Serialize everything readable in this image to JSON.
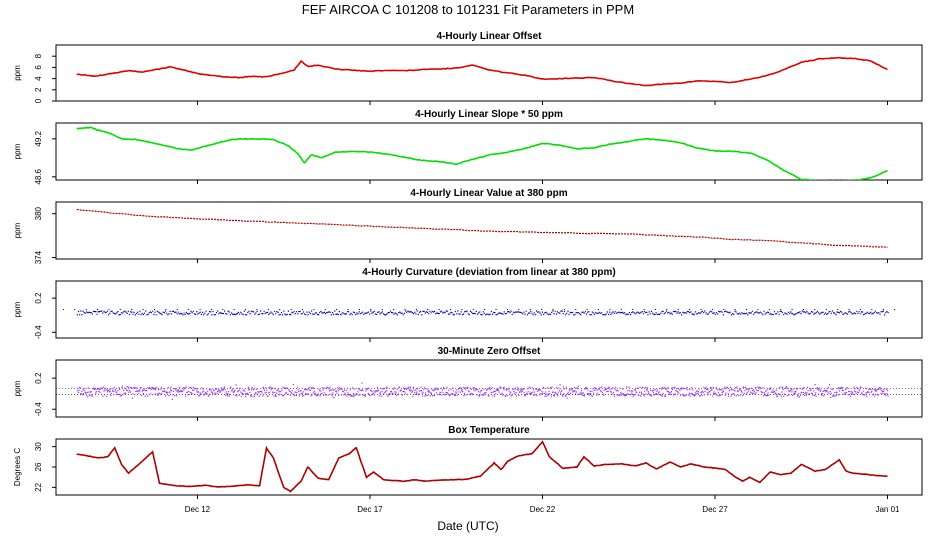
{
  "figure": {
    "title": "FEF   AIRCOA C   101208 to 101231   Fit Parameters in PPM",
    "xlabel": "Date (UTC)",
    "x_ticks": [
      {
        "label": "Dec 12",
        "day": 12
      },
      {
        "label": "Dec 17",
        "day": 17
      },
      {
        "label": "Dec 22",
        "day": 22
      },
      {
        "label": "Dec 27",
        "day": 27
      },
      {
        "label": "Jan 01",
        "day": 32
      }
    ],
    "x_range_days": [
      7.9,
      33.0
    ]
  },
  "chart_data": [
    {
      "type": "line",
      "title": "4-Hourly Linear Offset",
      "ylabel": "ppm",
      "ylim": [
        0,
        10
      ],
      "y_ticks": [
        "0",
        "2",
        "4",
        "6",
        "8"
      ],
      "y_tick_values": [
        0,
        2,
        4,
        6,
        8
      ],
      "color": "#dd0000",
      "series": [
        {
          "x": [
            8.5,
            8.8,
            9.0,
            9.3,
            9.6,
            10.0,
            10.4,
            10.8,
            11.2,
            11.6,
            12.0,
            12.4,
            12.8,
            13.2,
            13.6,
            14.0,
            14.4,
            14.8,
            15.0,
            15.2,
            15.5,
            16.0,
            16.5,
            17.0,
            17.5,
            18.0,
            18.5,
            19.0,
            19.5,
            20.0,
            20.5,
            21.0,
            21.5,
            22.0,
            22.5,
            23.0,
            23.5,
            24.0,
            24.5,
            25.0,
            25.5,
            26.0,
            26.5,
            27.0,
            27.5,
            28.0,
            28.5,
            29.0,
            29.5,
            30.0,
            30.5,
            31.0,
            31.5,
            32.0
          ],
          "y": [
            4.8,
            4.6,
            4.4,
            4.7,
            5.0,
            5.4,
            5.2,
            5.6,
            6.1,
            5.5,
            4.9,
            4.6,
            4.3,
            4.2,
            4.4,
            4.3,
            4.9,
            5.5,
            7.1,
            6.2,
            6.4,
            5.7,
            5.5,
            5.3,
            5.5,
            5.4,
            5.6,
            5.7,
            5.9,
            6.4,
            5.5,
            5.0,
            4.6,
            3.9,
            4.0,
            4.1,
            4.2,
            3.6,
            3.1,
            2.8,
            3.0,
            3.2,
            3.6,
            3.5,
            3.3,
            3.9,
            4.5,
            5.6,
            6.9,
            7.5,
            7.7,
            7.6,
            7.2,
            5.6
          ]
        }
      ]
    },
    {
      "type": "line",
      "title": "4-Hourly Linear Slope * 50 ppm",
      "ylabel": "ppm",
      "ylim": [
        48.55,
        49.45
      ],
      "y_ticks": [
        "48.6",
        "49.2"
      ],
      "y_tick_values": [
        48.6,
        49.2
      ],
      "color": "#00dd00",
      "series": [
        {
          "x": [
            8.5,
            8.7,
            8.9,
            9.1,
            9.4,
            9.8,
            10.2,
            10.6,
            11.0,
            11.4,
            11.8,
            12.2,
            12.6,
            13.0,
            13.4,
            13.8,
            14.2,
            14.6,
            14.9,
            15.1,
            15.3,
            15.6,
            16.0,
            16.4,
            16.8,
            17.2,
            17.6,
            18.0,
            18.5,
            19.0,
            19.5,
            20.0,
            20.5,
            21.0,
            21.5,
            22.0,
            22.5,
            23.0,
            23.5,
            24.0,
            24.5,
            25.0,
            25.5,
            26.0,
            26.5,
            27.0,
            27.5,
            28.0,
            28.5,
            29.0,
            29.5,
            30.0,
            30.5,
            30.8,
            31.2,
            31.6,
            32.0
          ],
          "y": [
            49.36,
            49.37,
            49.38,
            49.34,
            49.3,
            49.2,
            49.19,
            49.15,
            49.1,
            49.05,
            49.02,
            49.08,
            49.14,
            49.19,
            49.2,
            49.2,
            49.19,
            49.1,
            48.97,
            48.82,
            48.95,
            48.9,
            48.99,
            49.0,
            49.0,
            48.98,
            48.95,
            48.91,
            48.86,
            48.84,
            48.8,
            48.88,
            48.95,
            48.99,
            49.05,
            49.13,
            49.1,
            49.04,
            49.06,
            49.12,
            49.16,
            49.2,
            49.18,
            49.14,
            49.05,
            49.01,
            49.0,
            48.98,
            48.87,
            48.7,
            48.56,
            48.54,
            48.54,
            48.54,
            48.55,
            48.6,
            48.7
          ]
        }
      ]
    },
    {
      "type": "line",
      "title": "4-Hourly Linear Value at 380 ppm",
      "ylabel": "ppm",
      "ylim": [
        373.8,
        381.6
      ],
      "y_ticks": [
        "374",
        "380"
      ],
      "y_tick_values": [
        374,
        380
      ],
      "color": "#aa0000",
      "series": [
        {
          "x": [
            8.5,
            9.5,
            10.5,
            11.5,
            12.5,
            13.5,
            14.5,
            15.5,
            16.5,
            17.5,
            18.5,
            19.5,
            20.5,
            21.5,
            22.5,
            23.5,
            24.5,
            25.5,
            26.5,
            27.5,
            28.5,
            29.5,
            30.5,
            31.5,
            32.0
          ],
          "y": [
            380.6,
            380.1,
            379.7,
            379.4,
            379.2,
            379.0,
            378.8,
            378.6,
            378.4,
            378.2,
            378.0,
            377.8,
            377.6,
            377.5,
            377.4,
            377.3,
            377.2,
            377.0,
            376.8,
            376.5,
            376.3,
            376.0,
            375.7,
            375.5,
            375.4
          ]
        }
      ]
    },
    {
      "type": "scatter",
      "title": "4-Hourly Curvature (deviation from linear at 380 ppm)",
      "ylabel": "ppm",
      "ylim": [
        -0.5,
        0.5
      ],
      "y_ticks": [
        "-0.4",
        "0.2"
      ],
      "y_tick_values": [
        -0.4,
        0.2
      ],
      "color": "#0000cc",
      "series": [
        {
          "x": [
            8.5,
            32.0
          ],
          "y": [
            -0.05,
            -0.05
          ]
        }
      ]
    },
    {
      "type": "scatter",
      "title": "30-Minute Zero Offset",
      "ylabel": "ppm",
      "ylim": [
        -0.55,
        0.55
      ],
      "y_ticks": [
        "-0.4",
        "0.2"
      ],
      "y_tick_values": [
        -0.4,
        0.2
      ],
      "color": "#9933ff",
      "series": [
        {
          "x": [
            8.5,
            32.0
          ],
          "y": [
            -0.05,
            -0.05
          ]
        }
      ]
    },
    {
      "type": "line",
      "title": "Box Temperature",
      "ylabel": "Degrees C",
      "ylim": [
        20.5,
        31.5
      ],
      "y_ticks": [
        "22",
        "26",
        "30"
      ],
      "y_tick_values": [
        22,
        26,
        30
      ],
      "color": "#aa0000",
      "series": [
        {
          "x": [
            8.5,
            8.8,
            9.1,
            9.4,
            9.6,
            9.8,
            10.0,
            10.3,
            10.7,
            10.9,
            11.1,
            11.4,
            11.8,
            12.2,
            12.6,
            13.0,
            13.5,
            13.8,
            14.0,
            14.2,
            14.5,
            14.7,
            15.0,
            15.2,
            15.5,
            15.8,
            16.1,
            16.4,
            16.6,
            16.9,
            17.1,
            17.4,
            17.8,
            18.0,
            18.3,
            18.6,
            19.0,
            19.4,
            19.8,
            20.2,
            20.6,
            20.8,
            21.0,
            21.3,
            21.7,
            22.0,
            22.2,
            22.6,
            23.0,
            23.2,
            23.5,
            23.8,
            24.3,
            24.7,
            25.0,
            25.3,
            25.7,
            26.0,
            26.3,
            26.7,
            27.0,
            27.3,
            27.6,
            27.8,
            28.0,
            28.3,
            28.6,
            28.9,
            29.2,
            29.5,
            29.9,
            30.2,
            30.6,
            30.8,
            31.0,
            31.3,
            31.7,
            32.0
          ],
          "y": [
            28.5,
            28.2,
            27.8,
            28.0,
            29.8,
            26.5,
            24.8,
            26.5,
            29.0,
            22.8,
            22.6,
            22.3,
            22.2,
            22.4,
            22.1,
            22.2,
            22.5,
            22.3,
            29.7,
            27.8,
            22.0,
            21.2,
            23.2,
            26.0,
            23.8,
            23.5,
            27.8,
            28.6,
            29.8,
            24.0,
            25.0,
            23.5,
            23.3,
            23.2,
            23.5,
            23.2,
            23.4,
            23.5,
            23.6,
            24.2,
            26.8,
            25.5,
            27.2,
            28.2,
            28.6,
            31.0,
            28.0,
            25.7,
            26.0,
            28.0,
            26.2,
            26.5,
            26.6,
            26.2,
            26.8,
            25.6,
            27.0,
            26.0,
            26.6,
            26.0,
            25.8,
            25.5,
            24.0,
            23.2,
            24.0,
            23.0,
            25.0,
            24.5,
            24.8,
            26.5,
            25.2,
            25.5,
            27.4,
            25.2,
            24.8,
            24.6,
            24.3,
            24.2
          ]
        }
      ]
    }
  ]
}
